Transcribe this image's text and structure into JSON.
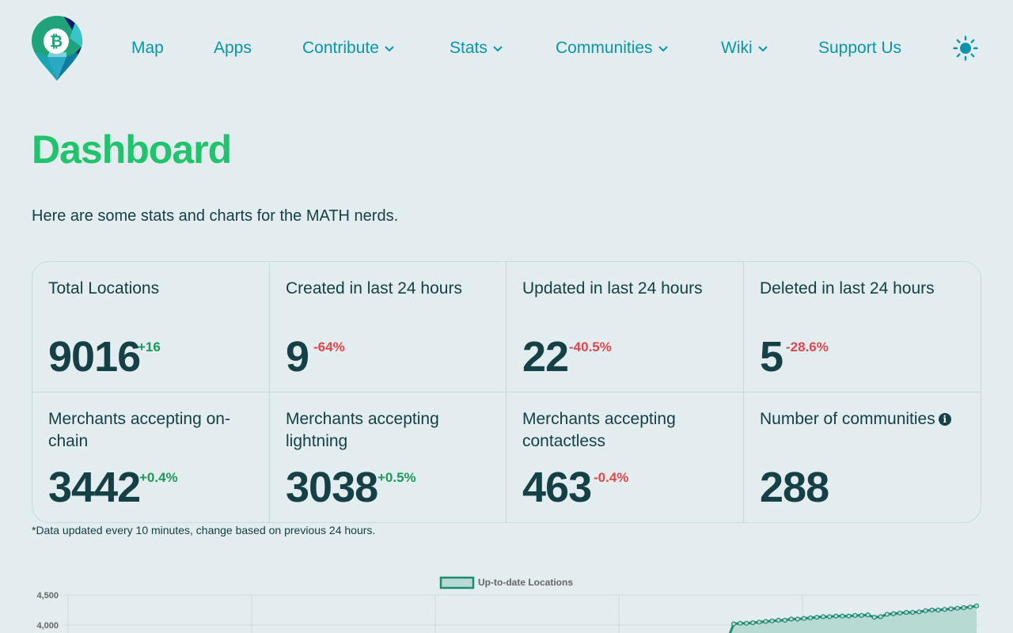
{
  "nav": {
    "items": [
      {
        "label": "Map",
        "dropdown": false
      },
      {
        "label": "Apps",
        "dropdown": false
      },
      {
        "label": "Contribute",
        "dropdown": true
      },
      {
        "label": "Stats",
        "dropdown": true
      },
      {
        "label": "Communities",
        "dropdown": true
      },
      {
        "label": "Wiki",
        "dropdown": true
      },
      {
        "label": "Support Us",
        "dropdown": false
      }
    ],
    "theme_icon": "sun-icon"
  },
  "page": {
    "title": "Dashboard",
    "subtitle": "Here are some stats and charts for the MATH nerds.",
    "footnote": "*Data updated every 10 minutes, change based on previous 24 hours."
  },
  "stats": [
    {
      "label": "Total Locations",
      "value": "9016",
      "change": "+16",
      "trend": "up"
    },
    {
      "label": "Created in last 24 hours",
      "value": "9",
      "change": "-64%",
      "trend": "down"
    },
    {
      "label": "Updated in last 24 hours",
      "value": "22",
      "change": "-40.5%",
      "trend": "down"
    },
    {
      "label": "Deleted in last 24 hours",
      "value": "5",
      "change": "-28.6%",
      "trend": "down"
    },
    {
      "label": "Merchants accepting on-chain",
      "value": "3442",
      "change": "+0.4%",
      "trend": "up"
    },
    {
      "label": "Merchants accepting lightning",
      "value": "3038",
      "change": "+0.5%",
      "trend": "up"
    },
    {
      "label": "Merchants accepting contactless",
      "value": "463",
      "change": "-0.4%",
      "trend": "down"
    },
    {
      "label": "Number of communities",
      "value": "288",
      "change": "",
      "trend": "none",
      "info": true
    }
  ],
  "colors": {
    "accent": "#21c36d",
    "nav": "#0b95aa",
    "text": "#144046",
    "positive": "#1c9a5c",
    "negative": "#e0474c",
    "chart_line": "#1e8a73",
    "chart_fill": "#b7dad3"
  },
  "chart_data": {
    "type": "area",
    "legend": [
      "Up-to-date Locations"
    ],
    "legend_position": "top-center",
    "y_ticks": [
      "4,500",
      "4,000"
    ],
    "ylim_visible": [
      3700,
      4500
    ],
    "grid": true,
    "series": [
      {
        "name": "Up-to-date Locations",
        "values": [
          3750,
          4020,
          4030,
          4030,
          4040,
          4050,
          4060,
          4070,
          4080,
          4080,
          4100,
          4100,
          4110,
          4120,
          4130,
          4140,
          4140,
          4150,
          4150,
          4150,
          4160,
          4160,
          4170,
          4130,
          4140,
          4180,
          4190,
          4200,
          4210,
          4210,
          4220,
          4240,
          4250,
          4250,
          4260,
          4270,
          4280,
          4290,
          4300,
          4320
        ]
      }
    ]
  }
}
